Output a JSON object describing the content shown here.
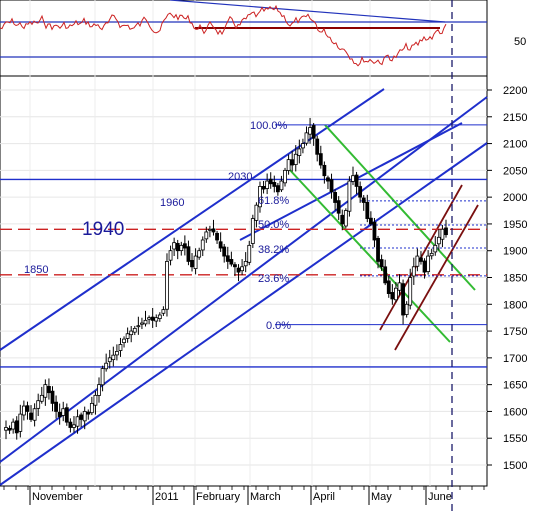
{
  "chart_data": {
    "type": "candlestick",
    "title": "",
    "price_axis": {
      "ticks": [
        2200,
        2150,
        2100,
        2050,
        2000,
        1950,
        1900,
        1850,
        1800,
        1750,
        1700,
        1650,
        1600,
        1550,
        1500
      ],
      "ylim": [
        1480,
        2225
      ]
    },
    "oscillator_axis": {
      "ticks": [
        50
      ]
    },
    "x_axis": {
      "labels": [
        "November",
        "2011",
        "February",
        "March",
        "April",
        "May",
        "June"
      ]
    },
    "annotations": {
      "big_level": "1940",
      "level_1960": "1960",
      "level_1850": "1850",
      "level_2030": "2030",
      "fib_100": "100.0%",
      "fib_618": "61.8%",
      "fib_50": "50.0%",
      "fib_382": "38.2%",
      "fib_236": "23.6%",
      "fib_0": "0.0%"
    },
    "horizontal_levels": {
      "solid_blue": [
        2033,
        1683
      ],
      "red_dashed": [
        1940,
        1855
      ],
      "fib_blue": [
        2135,
        1993,
        1948,
        1905,
        1853,
        1762
      ]
    },
    "series": {
      "close": [
        1570,
        1565,
        1580,
        1560,
        1595,
        1610,
        1600,
        1585,
        1605,
        1620,
        1630,
        1650,
        1635,
        1615,
        1600,
        1590,
        1605,
        1580,
        1570,
        1575,
        1590,
        1585,
        1600,
        1595,
        1615,
        1630,
        1650,
        1680,
        1690,
        1700,
        1705,
        1712,
        1725,
        1735,
        1745,
        1750,
        1755,
        1760,
        1765,
        1770,
        1775,
        1770,
        1775,
        1780,
        1790,
        1880,
        1900,
        1915,
        1900,
        1910,
        1905,
        1880,
        1870,
        1890,
        1900,
        1920,
        1935,
        1940,
        1935,
        1920,
        1905,
        1890,
        1880,
        1875,
        1870,
        1860,
        1870,
        1880,
        1910,
        1960,
        1985,
        2020,
        2015,
        2030,
        2025,
        2020,
        2010,
        2030,
        2050,
        2070,
        2060,
        2080,
        2090,
        2100,
        2120,
        2130,
        2110,
        2080,
        2060,
        2040,
        2030,
        2010,
        1990,
        1970,
        1950,
        1975,
        2030,
        2040,
        2020,
        2000,
        1990,
        1960,
        1950,
        1920,
        1880,
        1870,
        1840,
        1820,
        1810,
        1830,
        1840,
        1780,
        1800,
        1850,
        1870,
        1890,
        1880,
        1860,
        1890,
        1895,
        1910,
        1925,
        1940,
        1930
      ]
    }
  }
}
